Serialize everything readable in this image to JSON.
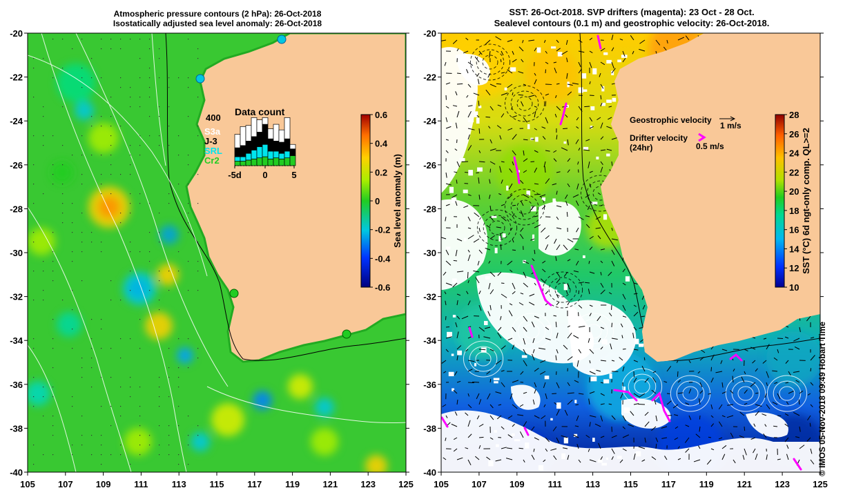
{
  "left_panel": {
    "title_line1": "Atmospheric pressure contours (2 hPa): 26-Oct-2018",
    "title_line2": "Isostatically adjusted sea level anomaly: 26-Oct-2018",
    "y_ticks": [
      "-20",
      "-22",
      "-24",
      "-26",
      "-28",
      "-30",
      "-32",
      "-34",
      "-36",
      "-38",
      "-40"
    ],
    "x_ticks": [
      "105",
      "107",
      "109",
      "111",
      "113",
      "115",
      "117",
      "119",
      "121",
      "123",
      "125"
    ],
    "colorbar": {
      "label": "Sea level anomaly (m)",
      "ticks": [
        "0.6",
        "0.4",
        "0.2",
        "0",
        "-0.2",
        "-0.4",
        "-0.6"
      ]
    },
    "data_count": {
      "title": "Data count",
      "ymax_label": "400",
      "x_ticks": [
        "-5d",
        "0",
        "5"
      ],
      "legend": [
        {
          "label": "S3a",
          "color": "#ffffff"
        },
        {
          "label": "J-3",
          "color": "#000000"
        },
        {
          "label": "SRL",
          "color": "#00e5ee"
        },
        {
          "label": "Cr2",
          "color": "#22cc22"
        }
      ],
      "bars": [
        {
          "cr2": 40,
          "srl": 40,
          "j3": 80,
          "s3a": 120
        },
        {
          "cr2": 40,
          "srl": 40,
          "j3": 100,
          "s3a": 170
        },
        {
          "cr2": 50,
          "srl": 60,
          "j3": 110,
          "s3a": 140
        },
        {
          "cr2": 60,
          "srl": 80,
          "j3": 120,
          "s3a": 170
        },
        {
          "cr2": 70,
          "srl": 100,
          "j3": 130,
          "s3a": 110
        },
        {
          "cr2": 80,
          "srl": 110,
          "j3": 180,
          "s3a": 60
        },
        {
          "cr2": 60,
          "srl": 70,
          "j3": 110,
          "s3a": 90
        },
        {
          "cr2": 70,
          "srl": 60,
          "j3": 90,
          "s3a": 150
        },
        {
          "cr2": 60,
          "srl": 50,
          "j3": 100,
          "s3a": 110
        },
        {
          "cr2": 70,
          "srl": 60,
          "j3": 110,
          "s3a": 190
        },
        {
          "cr2": 90,
          "srl": 0,
          "j3": 60,
          "s3a": 40
        }
      ],
      "ymax": 420
    }
  },
  "right_panel": {
    "title_line1": "SST: 26-Oct-2018. SVP drifters (magenta): 23 Oct - 28 Oct.",
    "title_line2": "Sealevel contours (0.1 m) and geostrophic velocity: 26-Oct-2018.",
    "y_ticks": [
      "-20",
      "-22",
      "-24",
      "-26",
      "-28",
      "-30",
      "-32",
      "-34",
      "-36",
      "-38",
      "-40"
    ],
    "x_ticks": [
      "105",
      "107",
      "109",
      "111",
      "113",
      "115",
      "117",
      "119",
      "121",
      "123",
      "125"
    ],
    "legend": {
      "geo_label": "Geostrophic velocity",
      "geo_scale": "1 m/s",
      "drifter_label_line1": "Drifter velocity",
      "drifter_label_line2": "(24hr)",
      "drifter_scale": "0.5 m/s"
    },
    "colorbar": {
      "label": "SST (°C) 6d ngt-only comp. QL>=2",
      "ticks": [
        "28",
        "26",
        "24",
        "22",
        "20",
        "18",
        "16",
        "14",
        "12",
        "10"
      ]
    }
  },
  "credit": "© IMOS 05-Nov-2018 09:49 Hobart Time",
  "colors": {
    "land": "#f9c898",
    "ssla_base": "#39c832",
    "drifter": "#ff00ff",
    "cloud": "#ffffff"
  }
}
